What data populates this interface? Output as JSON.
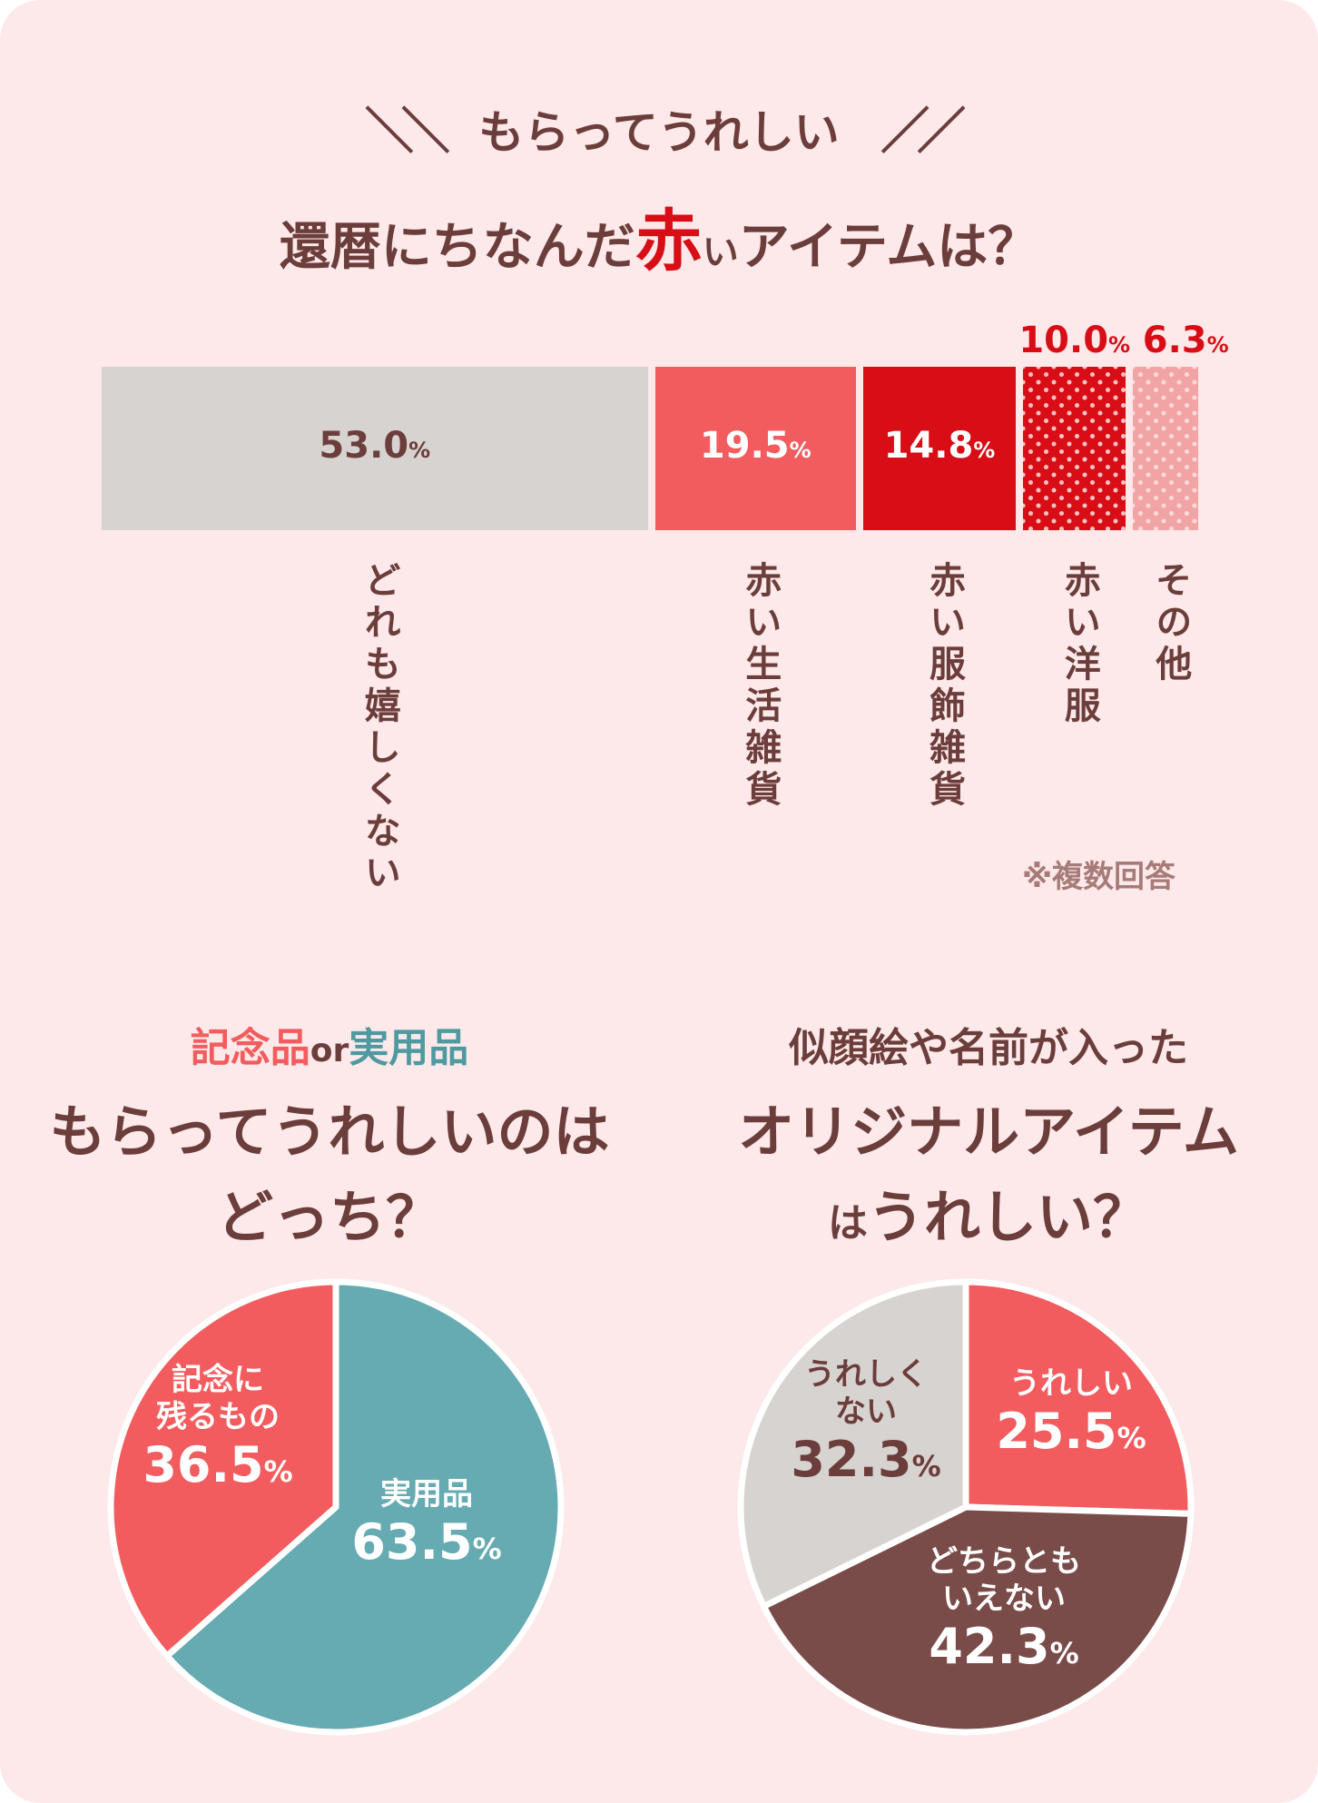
{
  "header": {
    "subtitle": "もらってうれしい",
    "slash_left": "＼＼",
    "slash_right": "／／",
    "title_pre": "還暦にちなんだ",
    "title_red": "赤",
    "title_small": "い",
    "title_post": "アイテムは？"
  },
  "note": "※複数回答",
  "colors": {
    "gray": "#d6d3d1",
    "coral": "#f25c5e",
    "red": "#d80d16",
    "pink": "#f2a3a3",
    "teal": "#65abb1",
    "brown": "#7a4c49",
    "text_brown": "#6b3d3b",
    "bg": "#fde9e9"
  },
  "chart_data": [
    {
      "type": "bar",
      "title": "還暦にちなんだ赤いアイテムは？",
      "orientation": "stacked-horizontal",
      "unit": "%",
      "categories": [
        "どれも嬉しくない",
        "赤い生活雑貨",
        "赤い服飾雑貨",
        "赤い洋服",
        "その他"
      ],
      "values": [
        53.0,
        19.5,
        14.8,
        10.0,
        6.3
      ],
      "labels": [
        "53.0",
        "19.5",
        "14.8",
        "10.0",
        "6.3"
      ],
      "pattern": [
        "solid",
        "solid",
        "solid",
        "dots",
        "dots"
      ],
      "label_position": [
        "inside",
        "inside",
        "inside",
        "above",
        "above"
      ]
    },
    {
      "type": "pie",
      "subtitle_a": "記念品",
      "subtitle_or": "or",
      "subtitle_b": "実用品",
      "title_line1": "もらってうれしいのは",
      "title_line2": "どっち？",
      "unit": "%",
      "slices": [
        {
          "label_lines": [
            "実用品"
          ],
          "value": 63.5,
          "value_text": "63.5",
          "color": "#65abb1"
        },
        {
          "label_lines": [
            "記念に",
            "残るもの"
          ],
          "value": 36.5,
          "value_text": "36.5",
          "color": "#f25c5e"
        }
      ]
    },
    {
      "type": "pie",
      "subtitle": "似顔絵や名前が入った",
      "title_line1": "オリジナルアイテム",
      "title_line2_small": "は",
      "title_line2": "うれしい？",
      "unit": "%",
      "slices": [
        {
          "label_lines": [
            "うれしい"
          ],
          "value": 25.5,
          "value_text": "25.5",
          "color": "#f25c5e"
        },
        {
          "label_lines": [
            "どちらとも",
            "いえない"
          ],
          "value": 42.3,
          "value_text": "42.3",
          "color": "#7a4c49"
        },
        {
          "label_lines": [
            "うれしく",
            "ない"
          ],
          "value": 32.3,
          "value_text": "32.3",
          "color": "#d6d3d1"
        }
      ]
    }
  ]
}
